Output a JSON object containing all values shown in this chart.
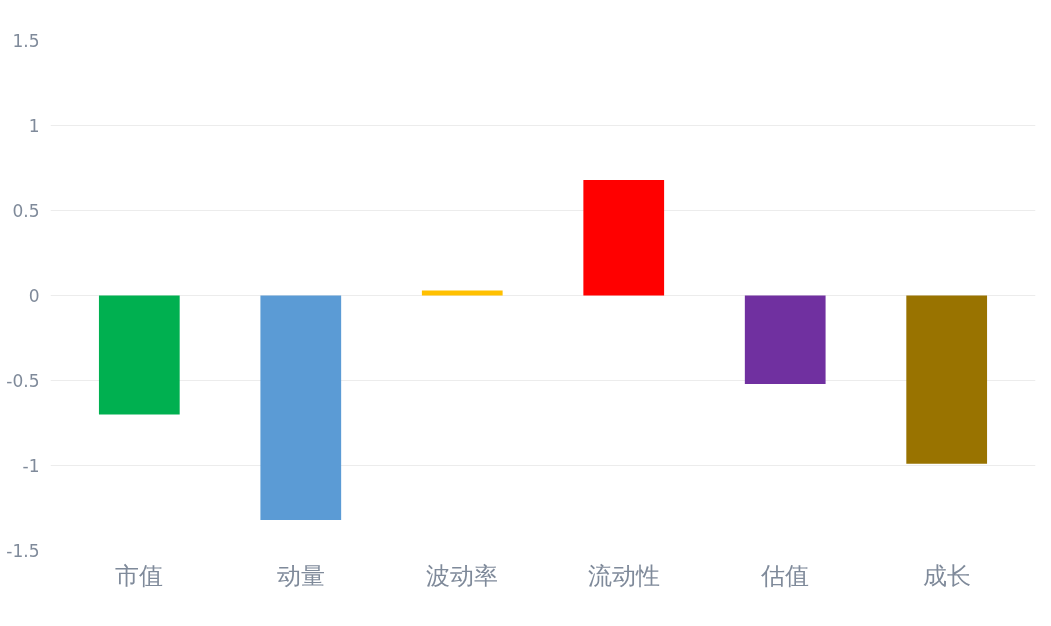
{
  "chart_data": {
    "type": "bar",
    "categories": [
      "市值",
      "动量",
      "波动率",
      "流动性",
      "估值",
      "成长"
    ],
    "values": [
      -0.7,
      -1.32,
      0.03,
      0.68,
      -0.52,
      -0.99
    ],
    "colors": [
      "#00b050",
      "#5b9bd5",
      "#ffc000",
      "#ff0000",
      "#7030a0",
      "#997300"
    ],
    "ylim": [
      -1.5,
      1.5
    ],
    "yticks": [
      1.5,
      1,
      0.5,
      0,
      -0.5,
      -1,
      -1.5
    ],
    "grid": "y"
  }
}
